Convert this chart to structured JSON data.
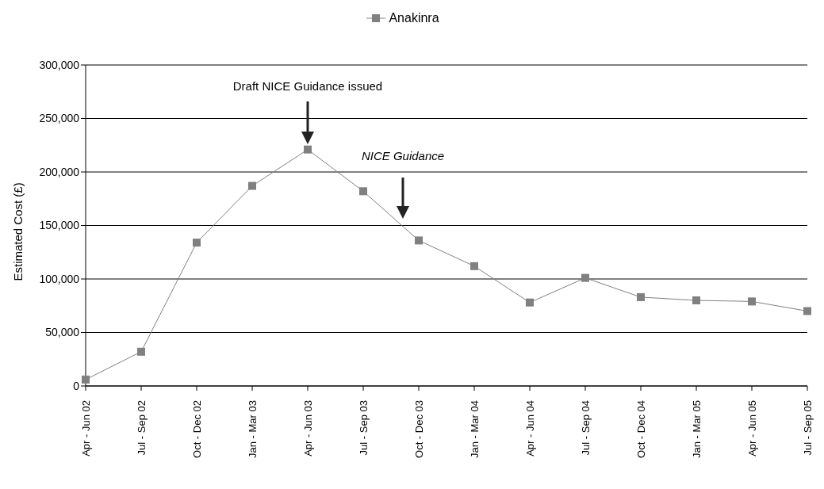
{
  "chart_data": {
    "type": "line",
    "ylabel": "Estimated Cost (£)",
    "categories": [
      "Apr - Jun 02",
      "Jul - Sep 02",
      "Oct - Dec 02",
      "Jan - Mar 03",
      "Apr - Jun 03",
      "Jul - Sep 03",
      "Oct - Dec 03",
      "Jan - Mar 04",
      "Apr - Jun 04",
      "Jul - Sep 04",
      "Oct - Dec 04",
      "Jan - Mar 05",
      "Apr - Jun 05",
      "Jul - Sep 05"
    ],
    "series": [
      {
        "name": "Anakinra",
        "color": "#808080",
        "values": [
          6000,
          32000,
          134000,
          187000,
          221000,
          182000,
          136000,
          112000,
          78000,
          101000,
          83000,
          80000,
          79000,
          70000
        ]
      }
    ],
    "ylim": [
      0,
      300000
    ],
    "yticks": [
      0,
      {
        "value": 50000,
        "label": "50,000"
      },
      {
        "value": 100000,
        "label": "100,000"
      },
      {
        "value": 150000,
        "label": "150,000"
      },
      {
        "value": 200000,
        "label": "200,000"
      },
      {
        "value": 250000,
        "label": "250,000"
      },
      {
        "value": 300000,
        "label": "300,000"
      }
    ],
    "grid": "y",
    "legend": "top",
    "marker": "square",
    "line_style": "solid",
    "annotations": [
      "Draft NICE Guidance issued",
      "NICE Guidance"
    ]
  }
}
